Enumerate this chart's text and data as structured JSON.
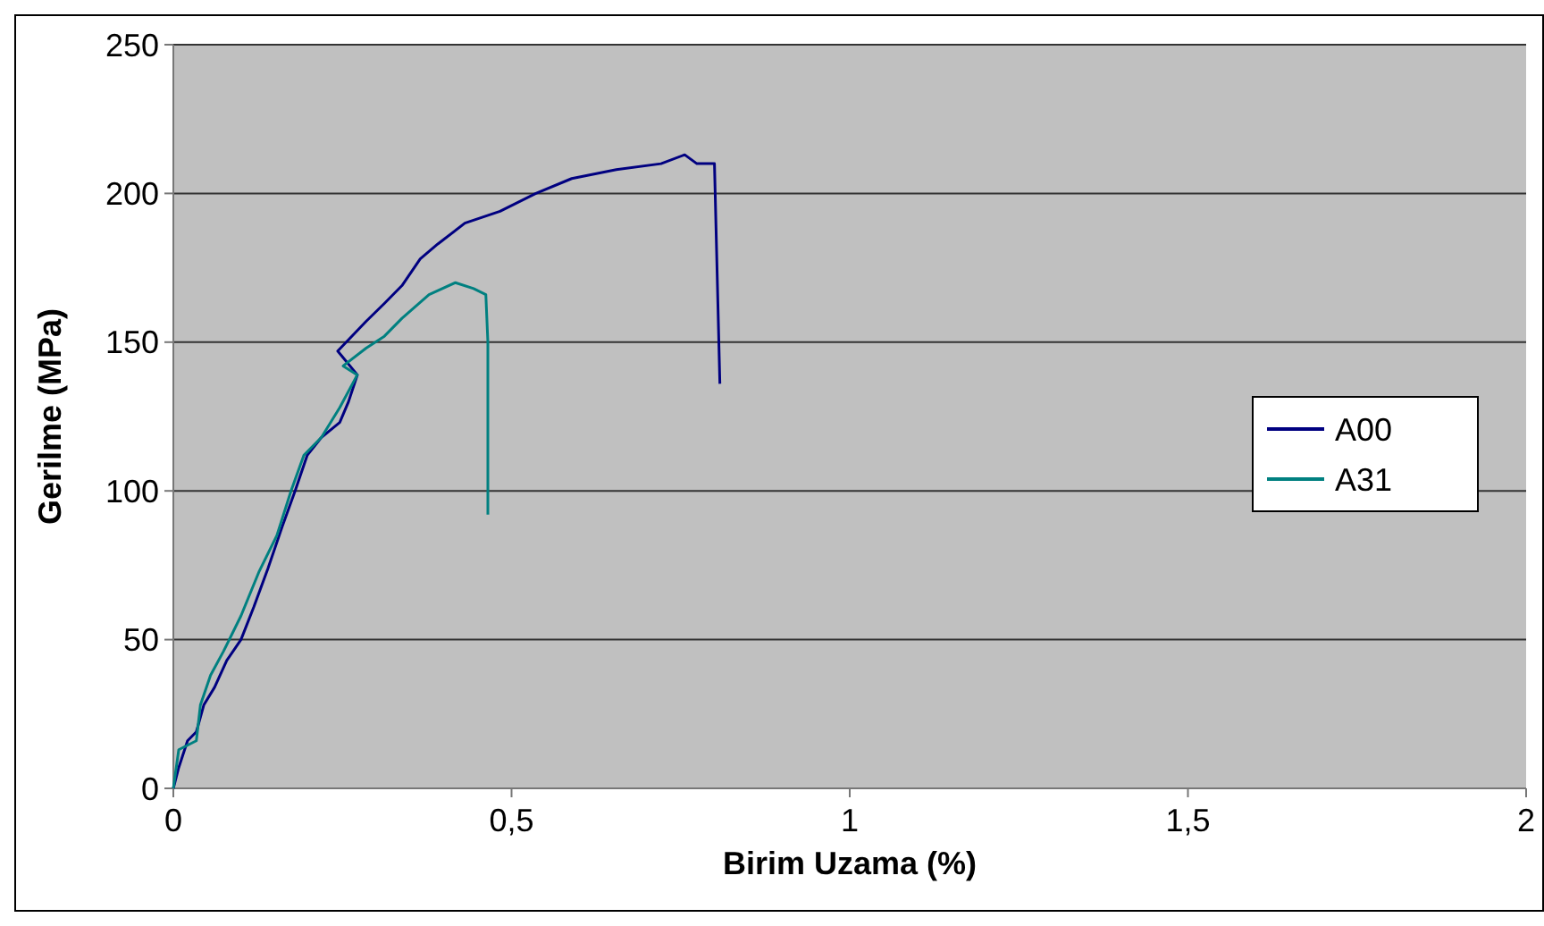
{
  "chart_data": {
    "type": "line",
    "xlabel": "Birim Uzama (%)",
    "ylabel": "Gerilme (MPa)",
    "xlim": [
      0,
      2
    ],
    "ylim": [
      0,
      250
    ],
    "xticks": [
      0,
      {
        "value": 0.5,
        "label": "0,5"
      },
      1,
      {
        "value": 1.5,
        "label": "1,5"
      },
      2
    ],
    "yticks": [
      0,
      50,
      100,
      150,
      200,
      250
    ],
    "grid": "y",
    "legend": "right",
    "marker": "none",
    "line_style": "solid",
    "series": [
      {
        "name": "A00",
        "color": "#000080",
        "x": [
          0,
          0.008,
          0.021,
          0.034,
          0.045,
          0.061,
          0.079,
          0.1,
          0.119,
          0.14,
          0.161,
          0.18,
          0.198,
          0.219,
          0.246,
          0.259,
          0.272,
          0.243,
          0.285,
          0.312,
          0.338,
          0.365,
          0.391,
          0.431,
          0.483,
          0.536,
          0.589,
          0.655,
          0.721,
          0.756,
          0.774,
          0.8,
          0.808
        ],
        "values": [
          0,
          7,
          16,
          19,
          28,
          34,
          43,
          50,
          61,
          74,
          88,
          100,
          112,
          118,
          123,
          130,
          139,
          147,
          157,
          163,
          169,
          178,
          183,
          190,
          194,
          200,
          205,
          208,
          210,
          213,
          210,
          210,
          136
        ]
      },
      {
        "name": "A31",
        "color": "#008080",
        "x": [
          0,
          0.008,
          0.034,
          0.04,
          0.055,
          0.074,
          0.1,
          0.127,
          0.153,
          0.174,
          0.193,
          0.219,
          0.246,
          0.272,
          0.251,
          0.285,
          0.312,
          0.338,
          0.378,
          0.417,
          0.444,
          0.462,
          0.465,
          0.465
        ],
        "values": [
          0,
          13,
          16,
          28,
          38,
          46,
          58,
          73,
          85,
          100,
          112,
          118,
          128,
          139,
          142,
          148,
          152,
          158,
          166,
          170,
          168,
          166,
          150,
          92
        ]
      }
    ]
  }
}
